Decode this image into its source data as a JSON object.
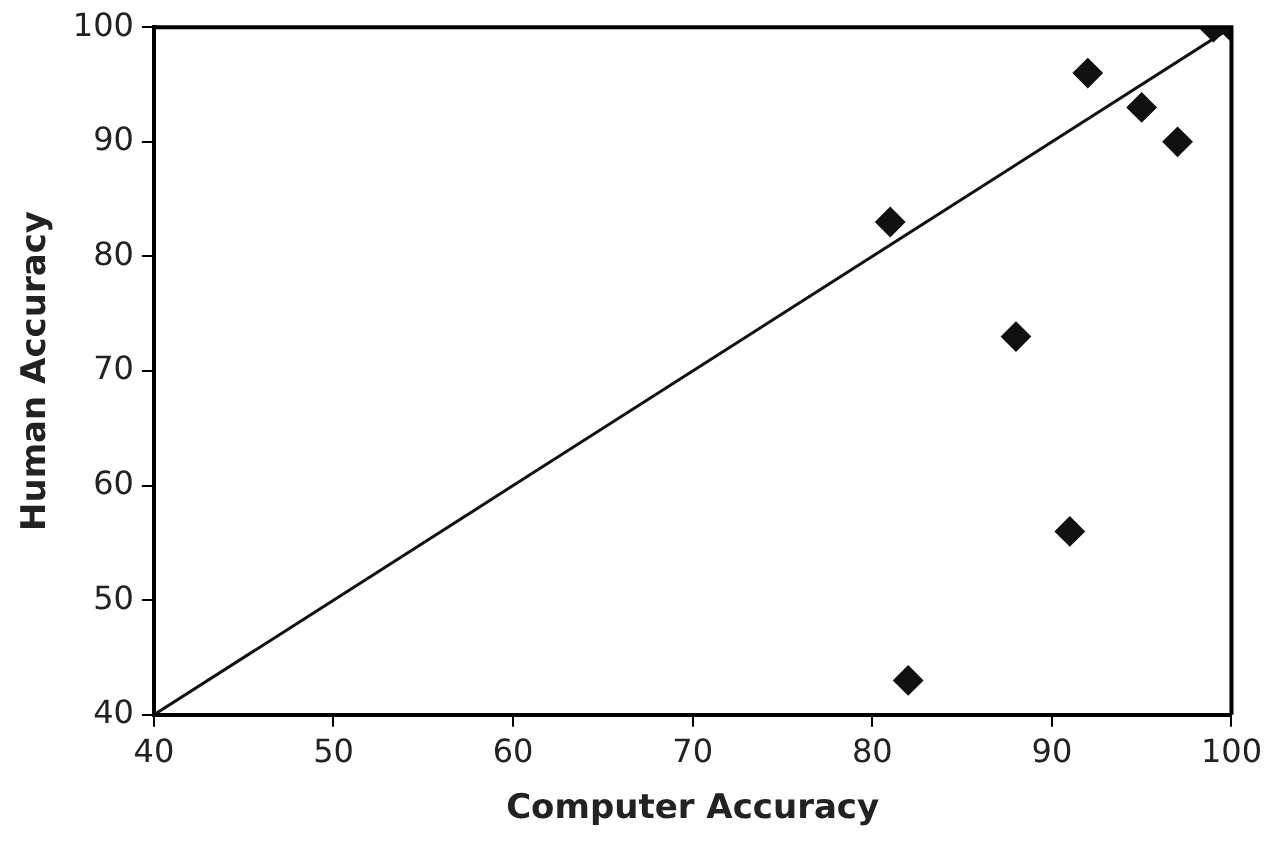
{
  "chart_data": {
    "type": "scatter",
    "xlabel": "Computer Accuracy",
    "ylabel": "Human Accuracy",
    "xlim": [
      40,
      100
    ],
    "xticks": [
      40,
      50,
      60,
      70,
      80,
      90,
      100
    ],
    "ylim": [
      40,
      100
    ],
    "yticks": [
      40,
      50,
      60,
      70,
      80,
      90,
      100
    ],
    "grid": false,
    "legend": false,
    "marker": "diamond",
    "series": [
      {
        "color": "#111111",
        "x": [
          99,
          100,
          92,
          95,
          97,
          81,
          88,
          91,
          82
        ],
        "values": [
          100,
          100,
          96,
          93,
          90,
          83,
          73,
          56,
          43
        ]
      },
      {
        "type": "line",
        "color": "#111111",
        "marker": "none",
        "line_style": "solid",
        "x": [
          40,
          100
        ],
        "values": [
          40,
          100
        ]
      }
    ]
  }
}
